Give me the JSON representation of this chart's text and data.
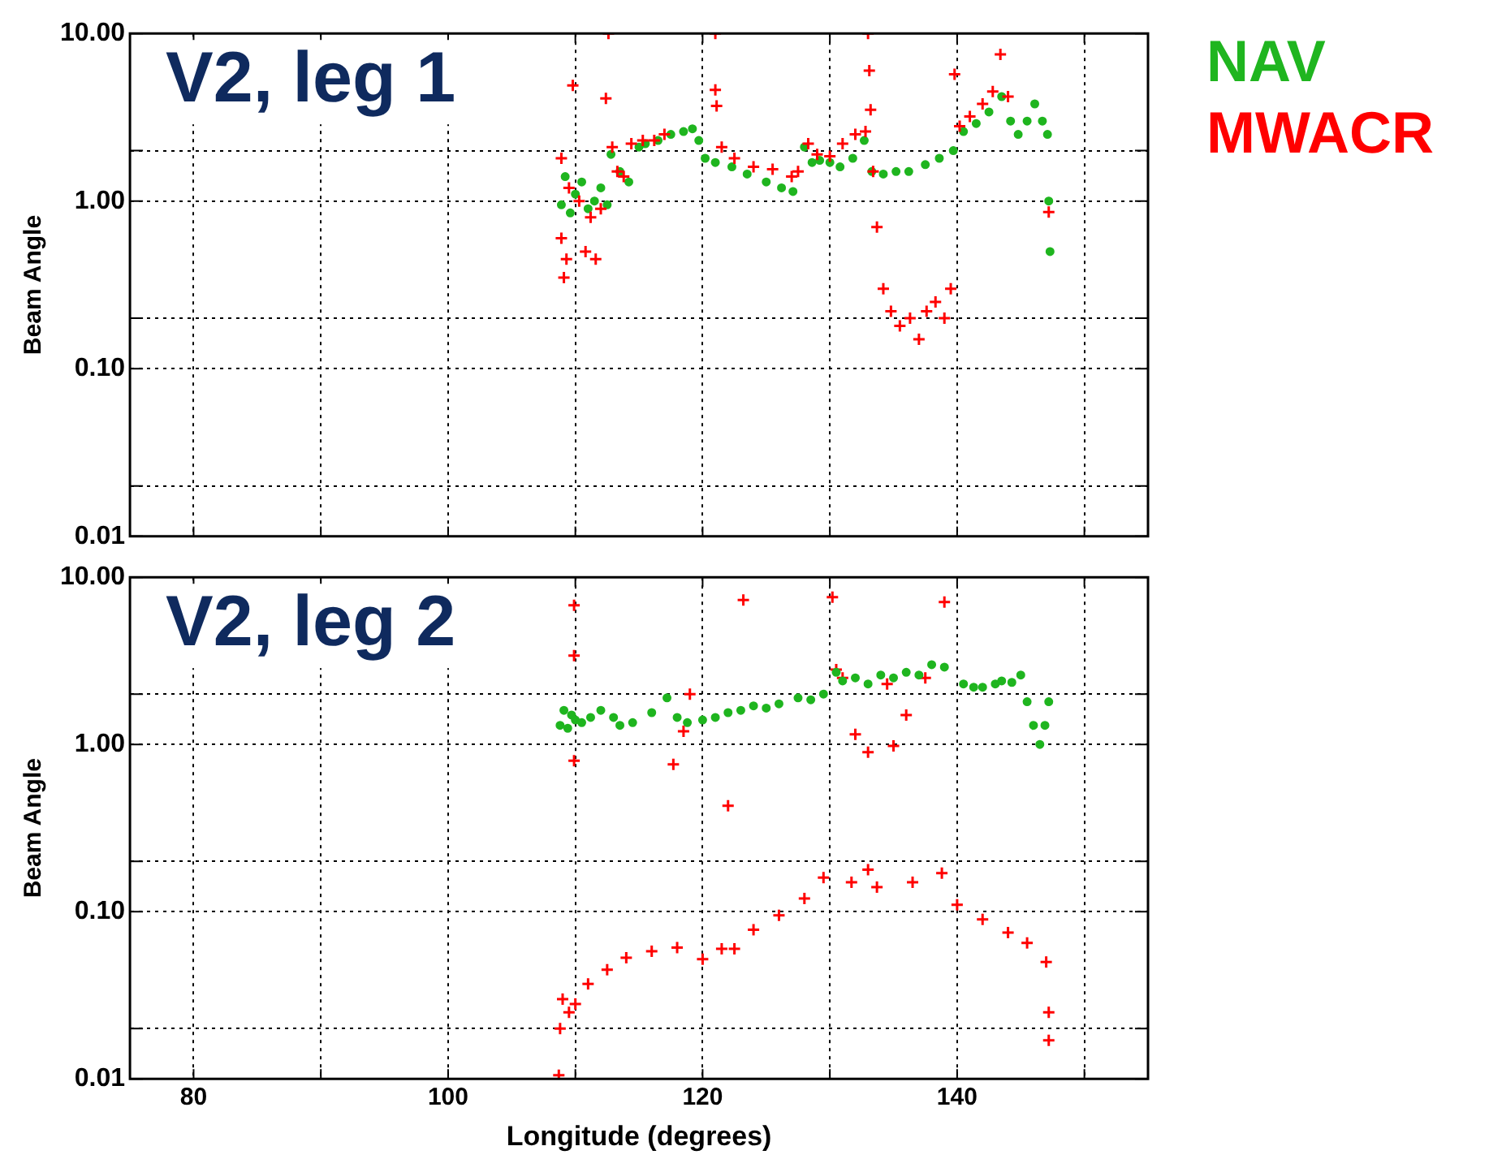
{
  "chart_data": [
    {
      "type": "scatter",
      "title": "V2, leg 1",
      "ylabel": "Beam Angle",
      "log": "y",
      "grid": true,
      "legend": "right",
      "tick_labels": "y",
      "xlim": [
        75,
        155
      ],
      "xticks": [
        80,
        {
          "value": 90,
          "label": null
        },
        100,
        {
          "value": 110,
          "label": null
        },
        120,
        {
          "value": 130,
          "label": null
        },
        140,
        {
          "value": 150,
          "label": null
        }
      ],
      "ylim": [
        0.01,
        10
      ],
      "yticks": [
        {
          "value": 0.01,
          "label": "0.01"
        },
        {
          "value": 0.02,
          "label": null
        },
        {
          "value": 0.1,
          "label": "0.10"
        },
        {
          "value": 0.2,
          "label": null
        },
        {
          "value": 1,
          "label": "1.00"
        },
        {
          "value": 2,
          "label": null
        },
        {
          "value": 10,
          "label": "10.00"
        }
      ],
      "series": [
        {
          "name": "MWACR",
          "color": "#ff0000",
          "marker": "cross",
          "x": [
            108.9,
            108.9,
            109.1,
            109.3,
            109.5,
            109.8,
            110.3,
            110.8,
            111.2,
            111.6,
            112,
            112.4,
            112.6,
            112.9,
            113.3,
            113.8,
            114.4,
            115.3,
            116.2,
            117,
            121,
            121,
            121.1,
            121.5,
            122.5,
            124,
            125.5,
            127,
            127.5,
            128.3,
            129,
            130,
            131,
            132,
            132.8,
            133,
            133.1,
            133.2,
            133.4,
            133.7,
            134.2,
            134.8,
            135.5,
            136.3,
            137,
            137.6,
            138.3,
            139,
            139.5,
            139.8,
            140.2,
            141,
            142,
            142.8,
            143.4,
            144,
            147.2
          ],
          "values": [
            1.8,
            0.6,
            0.35,
            0.45,
            1.2,
            4.9,
            1.0,
            0.5,
            0.8,
            0.45,
            0.9,
            4.1,
            10,
            2.1,
            1.5,
            1.4,
            2.2,
            2.3,
            2.3,
            2.5,
            10,
            4.6,
            3.7,
            2.1,
            1.8,
            1.6,
            1.55,
            1.4,
            1.5,
            2.2,
            1.9,
            1.85,
            2.2,
            2.5,
            2.6,
            10,
            6,
            3.5,
            1.5,
            0.7,
            0.3,
            0.22,
            0.18,
            0.2,
            0.15,
            0.22,
            0.25,
            0.2,
            0.3,
            5.7,
            2.8,
            3.2,
            3.8,
            4.5,
            7.5,
            4.2,
            0.86
          ]
        },
        {
          "name": "NAV",
          "color": "#1fb51f",
          "marker": "circle",
          "x": [
            108.9,
            109.2,
            109.6,
            110,
            110.5,
            111,
            111.5,
            112,
            112.5,
            112.8,
            113.5,
            114.2,
            115,
            115.5,
            116.5,
            117.5,
            118.5,
            119.2,
            119.7,
            120.2,
            121,
            122.3,
            123.5,
            125,
            126.2,
            127.1,
            128,
            128.6,
            129.2,
            130,
            130.8,
            131.8,
            132.7,
            133.3,
            134.2,
            135.2,
            136.2,
            137.5,
            138.6,
            139.7,
            140.5,
            141.5,
            142.5,
            143.5,
            144.2,
            144.8,
            145.5,
            146.1,
            146.7,
            147.1,
            147.2,
            147.3
          ],
          "values": [
            0.95,
            1.4,
            0.85,
            1.1,
            1.3,
            0.9,
            1.0,
            1.2,
            0.95,
            1.9,
            1.5,
            1.3,
            2.1,
            2.2,
            2.3,
            2.5,
            2.6,
            2.7,
            2.3,
            1.8,
            1.7,
            1.6,
            1.45,
            1.3,
            1.2,
            1.14,
            2.1,
            1.7,
            1.75,
            1.7,
            1.6,
            1.8,
            2.3,
            1.5,
            1.45,
            1.5,
            1.5,
            1.65,
            1.8,
            2.0,
            2.6,
            2.9,
            3.4,
            4.2,
            3.0,
            2.5,
            3.0,
            3.8,
            3.0,
            2.5,
            1.0,
            0.5
          ]
        }
      ]
    },
    {
      "type": "scatter",
      "title": "V2, leg 2",
      "xlabel": "Longitude (degrees)",
      "ylabel": "Beam Angle",
      "log": "y",
      "grid": true,
      "xlim": [
        75,
        155
      ],
      "xticks": [
        80,
        {
          "value": 90,
          "label": null
        },
        100,
        {
          "value": 110,
          "label": null
        },
        120,
        {
          "value": 130,
          "label": null
        },
        140,
        {
          "value": 150,
          "label": null
        }
      ],
      "ylim": [
        0.01,
        10
      ],
      "yticks": [
        {
          "value": 0.01,
          "label": "0.01"
        },
        {
          "value": 0.02,
          "label": null
        },
        {
          "value": 0.1,
          "label": "0.10"
        },
        {
          "value": 0.2,
          "label": null
        },
        {
          "value": 1,
          "label": "1.00"
        },
        {
          "value": 2,
          "label": null
        },
        {
          "value": 10,
          "label": "10.00"
        }
      ],
      "series": [
        {
          "color": "#1fb51f",
          "marker": "circle",
          "x": [
            108.8,
            109.1,
            109.4,
            109.7,
            110,
            110.5,
            111.2,
            112,
            113,
            113.5,
            114.5,
            116,
            117.2,
            118,
            118.8,
            120,
            121,
            122,
            123,
            124,
            125,
            126,
            127.5,
            128.5,
            129.5,
            130.5,
            131,
            132,
            133,
            134,
            135,
            136,
            137,
            138,
            139,
            140.5,
            141.3,
            142,
            143,
            143.5,
            144.3,
            145,
            145.5,
            146,
            146.5,
            146.9,
            147.2
          ],
          "values": [
            1.3,
            1.6,
            1.25,
            1.5,
            1.4,
            1.35,
            1.45,
            1.6,
            1.45,
            1.3,
            1.35,
            1.55,
            1.9,
            1.45,
            1.35,
            1.4,
            1.45,
            1.55,
            1.6,
            1.7,
            1.65,
            1.75,
            1.9,
            1.85,
            2.0,
            2.7,
            2.4,
            2.5,
            2.3,
            2.6,
            2.5,
            2.7,
            2.6,
            3.0,
            2.9,
            2.3,
            2.2,
            2.2,
            2.3,
            2.4,
            2.35,
            2.6,
            1.8,
            1.3,
            1.0,
            1.3,
            1.8
          ]
        },
        {
          "color": "#ff0000",
          "marker": "cross",
          "x": [
            108.7,
            108.8,
            109,
            109.5,
            109.9,
            109.9,
            109.9,
            110,
            111,
            112.5,
            114,
            116,
            117.7,
            118,
            118.5,
            119,
            120,
            121.5,
            122,
            122.5,
            123.2,
            124,
            126,
            128,
            129.5,
            130.2,
            130.5,
            131,
            131.7,
            132,
            133,
            133,
            133.7,
            134.5,
            135,
            136,
            136.5,
            137.5,
            138.8,
            139,
            140,
            142,
            144,
            145.5,
            147,
            147.2,
            147.2
          ],
          "values": [
            0.0105,
            0.02,
            0.03,
            0.025,
            6.8,
            3.4,
            0.8,
            0.028,
            0.037,
            0.045,
            0.053,
            0.058,
            0.76,
            0.061,
            1.2,
            2.0,
            0.052,
            0.06,
            0.43,
            0.06,
            7.3,
            0.078,
            0.095,
            0.12,
            0.16,
            7.6,
            2.8,
            2.5,
            0.15,
            1.15,
            0.178,
            0.9,
            0.14,
            2.3,
            0.98,
            1.5,
            0.15,
            2.5,
            0.17,
            7.1,
            0.11,
            0.09,
            0.075,
            0.065,
            0.05,
            0.025,
            0.017
          ]
        }
      ]
    }
  ]
}
